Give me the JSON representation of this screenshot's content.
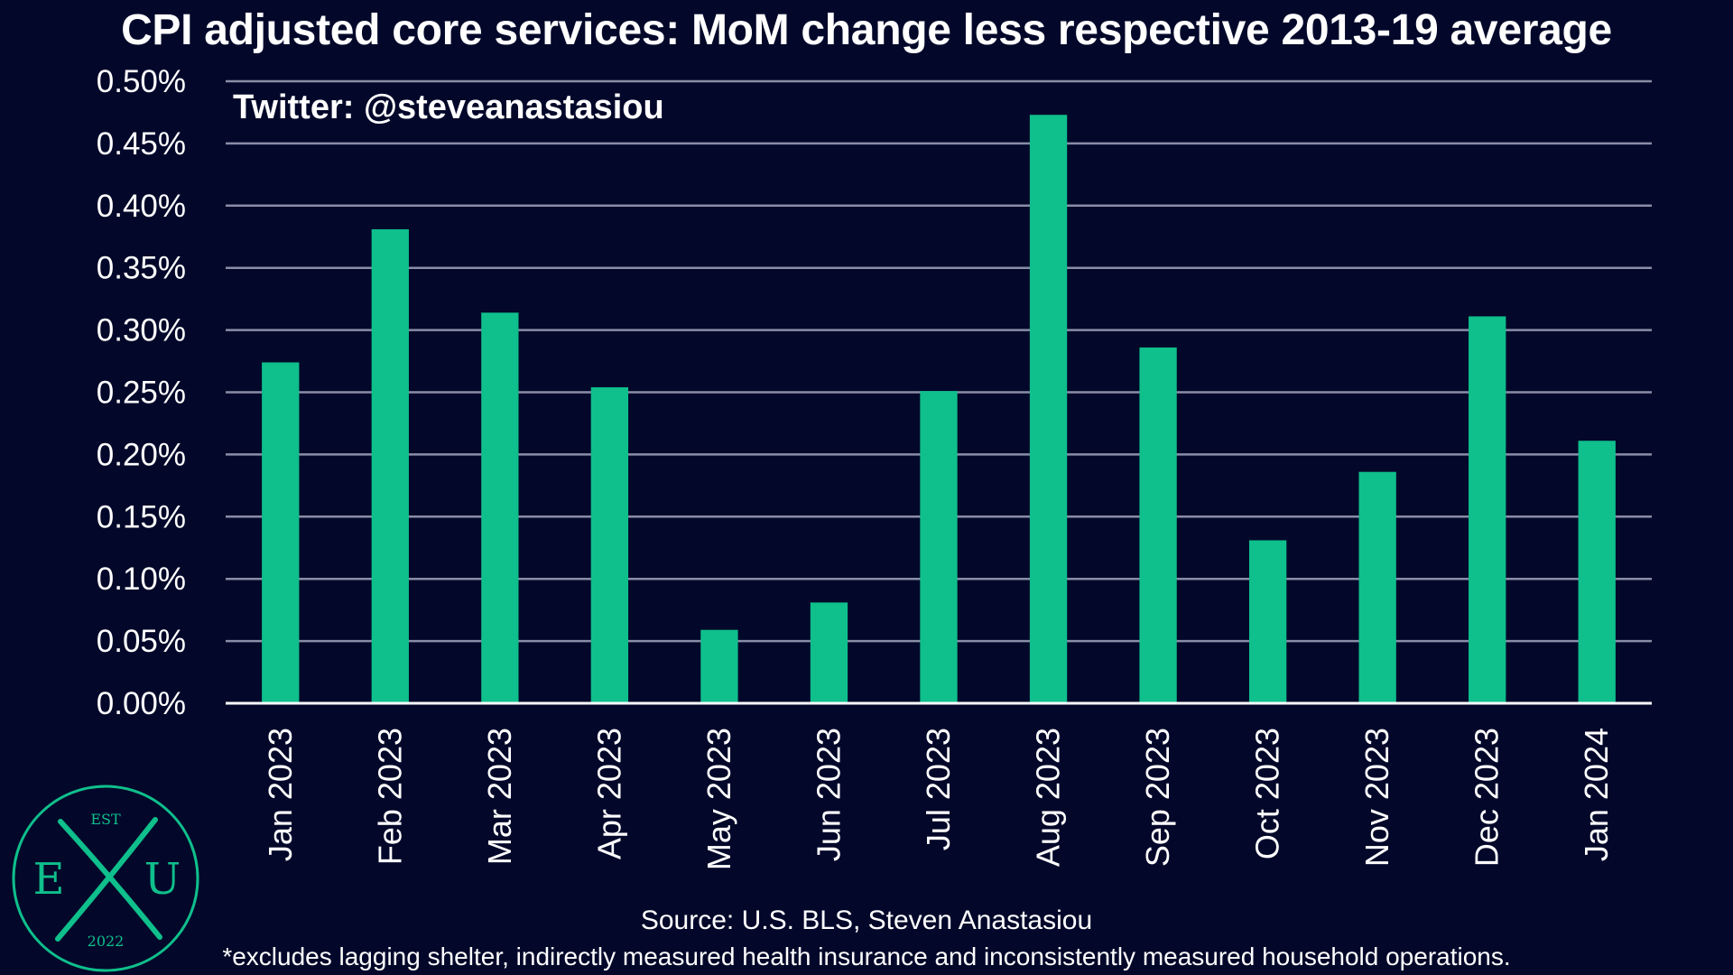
{
  "title": "CPI adjusted core services: MoM change less respective 2013-19 average",
  "watermark": "Twitter: @steveanastasiou",
  "source": "Source: U.S. BLS, Steven Anastasiou",
  "footnote": "*excludes lagging shelter, indirectly measured health insurance and inconsistently measured household operations.",
  "logo": {
    "top_text": "EST",
    "left_letter": "E",
    "middle_letter": "X",
    "right_letter": "U",
    "bottom_text": "2022"
  },
  "colors": {
    "background": "#03082a",
    "bar": "#0fbf8c",
    "grid": "#8a8da6",
    "axis": "#ffffff",
    "text": "#ffffff"
  },
  "chart_data": {
    "type": "bar",
    "title": "CPI adjusted core services: MoM change less respective 2013-19 average",
    "xlabel": "",
    "ylabel": "",
    "categories": [
      "Jan 2023",
      "Feb 2023",
      "Mar 2023",
      "Apr 2023",
      "May 2023",
      "Jun 2023",
      "Jul 2023",
      "Aug 2023",
      "Sep 2023",
      "Oct 2023",
      "Nov 2023",
      "Dec 2023",
      "Jan 2024"
    ],
    "values": [
      0.274,
      0.381,
      0.314,
      0.254,
      0.059,
      0.081,
      0.251,
      0.473,
      0.286,
      0.131,
      0.186,
      0.311,
      0.211
    ],
    "ylim": [
      0,
      0.5
    ],
    "yticks": [
      0.0,
      0.05,
      0.1,
      0.15,
      0.2,
      0.25,
      0.3,
      0.35,
      0.4,
      0.45,
      0.5
    ],
    "ytick_labels": [
      "0.00%",
      "0.05%",
      "0.10%",
      "0.15%",
      "0.20%",
      "0.25%",
      "0.30%",
      "0.35%",
      "0.40%",
      "0.45%",
      "0.50%"
    ],
    "grid": true,
    "legend": "none"
  }
}
